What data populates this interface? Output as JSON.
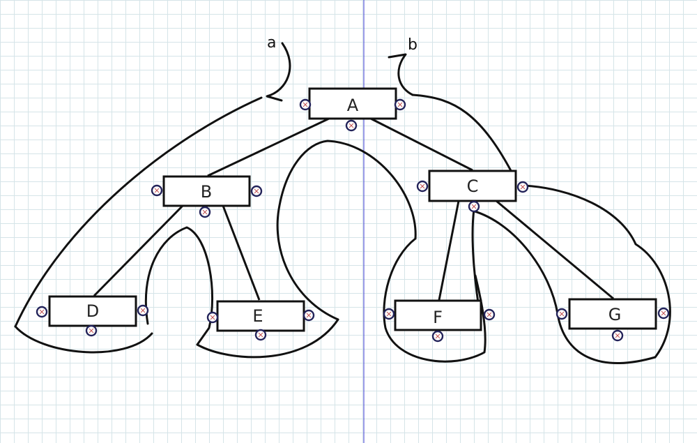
{
  "diagram": {
    "nodes": [
      {
        "id": "A",
        "label": "A"
      },
      {
        "id": "B",
        "label": "B"
      },
      {
        "id": "C",
        "label": "C"
      },
      {
        "id": "D",
        "label": "D"
      },
      {
        "id": "E",
        "label": "E"
      },
      {
        "id": "F",
        "label": "F"
      },
      {
        "id": "G",
        "label": "G"
      }
    ],
    "edges": [
      {
        "from": "A",
        "to": "B"
      },
      {
        "from": "A",
        "to": "C"
      },
      {
        "from": "B",
        "to": "D"
      },
      {
        "from": "B",
        "to": "E"
      },
      {
        "from": "C",
        "to": "F"
      },
      {
        "from": "C",
        "to": "G"
      }
    ],
    "annotations": {
      "a": "a",
      "b": "b"
    },
    "colors": {
      "grid": "#d5e4e8",
      "ink": "#111111",
      "port": "#23235a",
      "guide_line": "#3a3ad0"
    }
  }
}
